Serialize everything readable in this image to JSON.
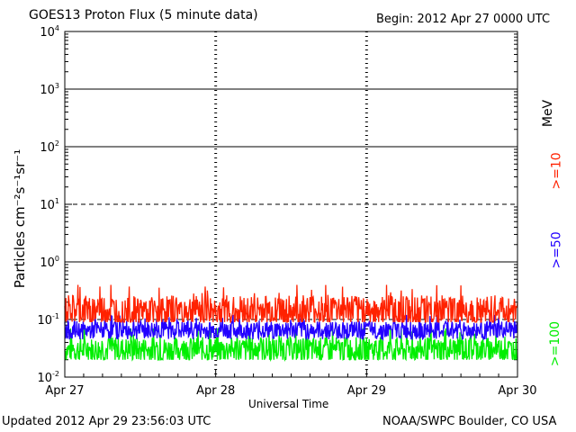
{
  "header": {
    "title": "GOES13 Proton Flux (5 minute data)",
    "begin": "Begin: 2012 Apr 27 0000 UTC"
  },
  "footer": {
    "updated": "Updated 2012 Apr 29 23:56:03 UTC",
    "credit": "NOAA/SWPC Boulder, CO USA"
  },
  "chart_data": {
    "type": "line",
    "title": "GOES13 Proton Flux (5 minute data)",
    "xlabel": "Universal Time",
    "ylabel": "Particles cm⁻²s⁻¹sr⁻¹",
    "yscale": "log",
    "ylim": [
      0.01,
      10000
    ],
    "yticks": [
      {
        "value": 0.01,
        "base": "10",
        "exp": "-2"
      },
      {
        "value": 0.1,
        "base": "10",
        "exp": "-1"
      },
      {
        "value": 1,
        "base": "10",
        "exp": "0"
      },
      {
        "value": 10,
        "base": "10",
        "exp": "1"
      },
      {
        "value": 100,
        "base": "10",
        "exp": "2"
      },
      {
        "value": 1000,
        "base": "10",
        "exp": "3"
      },
      {
        "value": 10000,
        "base": "10",
        "exp": "4"
      }
    ],
    "xticks": [
      "Apr 27",
      "Apr 28",
      "Apr 29",
      "Apr 30"
    ],
    "xlim": [
      "2012-04-27",
      "2012-04-30"
    ],
    "thresholds": [
      {
        "value": 10,
        "style": "dashed"
      },
      {
        "value": 0.1,
        "style": "dashed"
      }
    ],
    "unit_label": "MeV",
    "series": [
      {
        "name": ">=10",
        "color": "#ff2200",
        "typical": 0.14,
        "range": [
          0.09,
          0.4
        ]
      },
      {
        "name": ">=50",
        "color": "#2200ff",
        "typical": 0.065,
        "range": [
          0.035,
          0.12
        ]
      },
      {
        "name": ">=100",
        "color": "#00ee00",
        "typical": 0.03,
        "range": [
          0.02,
          0.07
        ]
      }
    ]
  }
}
